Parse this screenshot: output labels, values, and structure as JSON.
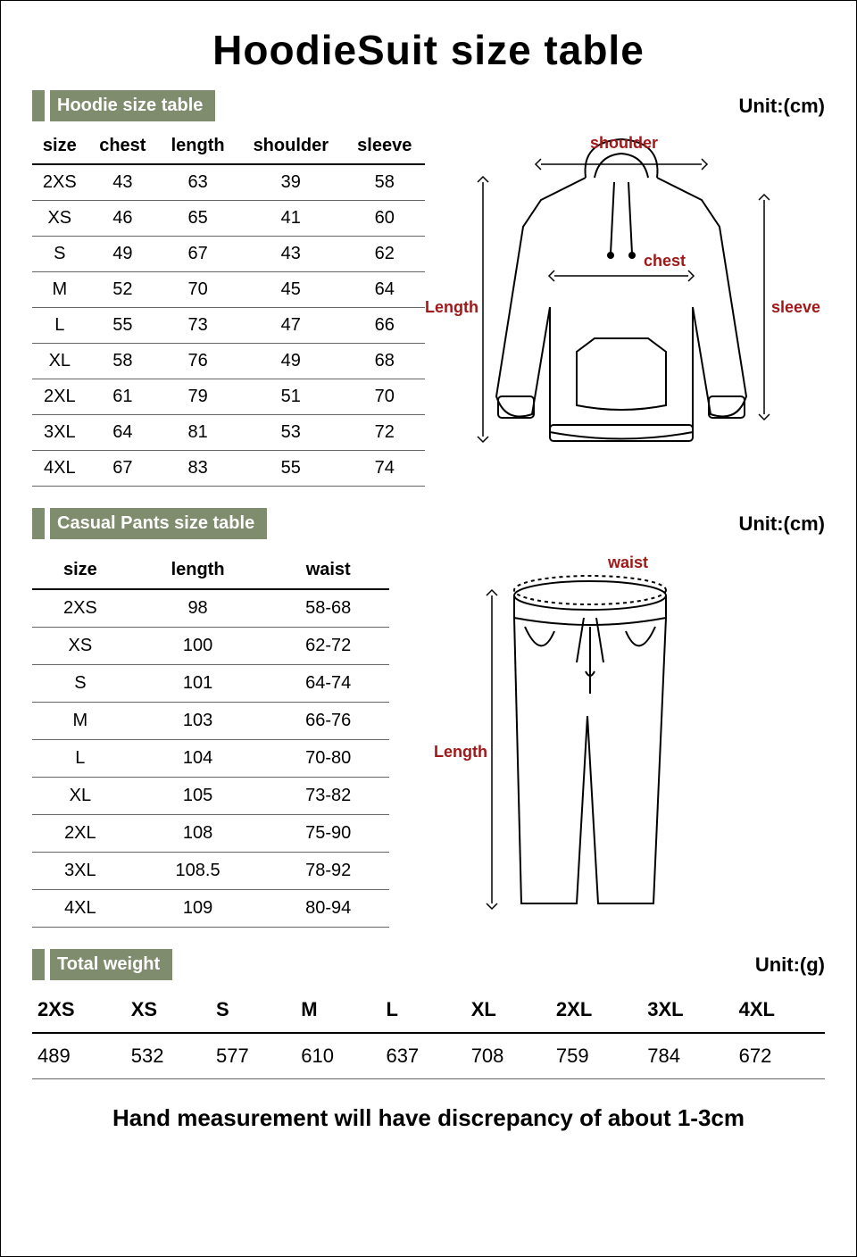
{
  "title": "HoodieSuit size table",
  "colors": {
    "tab_bg": "#808c6e",
    "tab_text": "#ffffff",
    "label_red": "#a01818",
    "border": "#666666",
    "text": "#000000",
    "background": "#ffffff"
  },
  "typography": {
    "title_fontsize": 46,
    "tab_fontsize": 20,
    "unit_fontsize": 22,
    "table_fontsize": 20,
    "weight_fontsize": 22,
    "footnote_fontsize": 26,
    "diagram_label_fontsize": 18
  },
  "hoodie": {
    "tab_label": "Hoodie size table",
    "unit_label": "Unit:(cm)",
    "columns": [
      "size",
      "chest",
      "length",
      "shoulder",
      "sleeve"
    ],
    "rows": [
      [
        "2XS",
        "43",
        "63",
        "39",
        "58"
      ],
      [
        "XS",
        "46",
        "65",
        "41",
        "60"
      ],
      [
        "S",
        "49",
        "67",
        "43",
        "62"
      ],
      [
        "M",
        "52",
        "70",
        "45",
        "64"
      ],
      [
        "L",
        "55",
        "73",
        "47",
        "66"
      ],
      [
        "XL",
        "58",
        "76",
        "49",
        "68"
      ],
      [
        "2XL",
        "61",
        "79",
        "51",
        "70"
      ],
      [
        "3XL",
        "64",
        "81",
        "53",
        "72"
      ],
      [
        "4XL",
        "67",
        "83",
        "55",
        "74"
      ]
    ],
    "diagram_labels": {
      "shoulder": "shoulder",
      "chest": "chest",
      "length": "Length",
      "sleeve": "sleeve"
    }
  },
  "pants": {
    "tab_label": "Casual Pants size table",
    "unit_label": "Unit:(cm)",
    "columns": [
      "size",
      "length",
      "waist"
    ],
    "rows": [
      [
        "2XS",
        "98",
        "58-68"
      ],
      [
        "XS",
        "100",
        "62-72"
      ],
      [
        "S",
        "101",
        "64-74"
      ],
      [
        "M",
        "103",
        "66-76"
      ],
      [
        "L",
        "104",
        "70-80"
      ],
      [
        "XL",
        "105",
        "73-82"
      ],
      [
        "2XL",
        "108",
        "75-90"
      ],
      [
        "3XL",
        "108.5",
        "78-92"
      ],
      [
        "4XL",
        "109",
        "80-94"
      ]
    ],
    "diagram_labels": {
      "waist": "waist",
      "length": "Length"
    }
  },
  "weight": {
    "tab_label": "Total weight",
    "unit_label": "Unit:(g)",
    "columns": [
      "2XS",
      "XS",
      "S",
      "M",
      "L",
      "XL",
      "2XL",
      "3XL",
      "4XL"
    ],
    "values": [
      "489",
      "532",
      "577",
      "610",
      "637",
      "708",
      "759",
      "784",
      "672"
    ]
  },
  "footnote": "Hand measurement will have discrepancy of about 1-3cm"
}
